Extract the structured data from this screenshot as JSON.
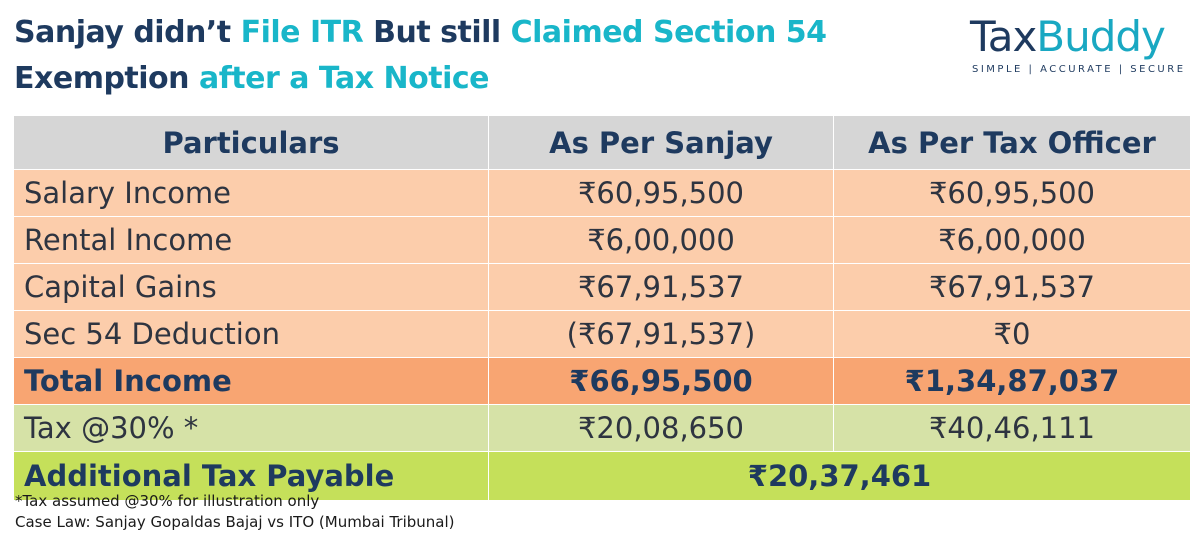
{
  "title": {
    "l1_a": "Sanjay didn’t ",
    "l1_b": "File ITR",
    "l1_c": " But still ",
    "l1_d": "Claimed Section 54",
    "l2_a": "Exemption ",
    "l2_b": "after a ",
    "l2_c": "Tax Notice",
    "accent_color": "#19b6c9",
    "dark_color": "#1e3a5f"
  },
  "logo": {
    "part1": "Tax",
    "part2": "Buddy",
    "tagline": "SIMPLE | ACCURATE | SECURE"
  },
  "table": {
    "headers": [
      "Particulars",
      "As Per Sanjay",
      "As Per Tax Officer"
    ],
    "rows": [
      {
        "label": "Salary Income",
        "sanjay": "₹60,95,500",
        "officer": "₹60,95,500"
      },
      {
        "label": "Rental Income",
        "sanjay": "₹6,00,000",
        "officer": "₹6,00,000"
      },
      {
        "label": "Capital Gains",
        "sanjay": "₹67,91,537",
        "officer": "₹67,91,537"
      },
      {
        "label": "Sec 54 Deduction",
        "sanjay": "(₹67,91,537)",
        "officer": "₹0"
      }
    ],
    "total": {
      "label": "Total Income",
      "sanjay": "₹66,95,500",
      "officer": "₹1,34,87,037"
    },
    "tax": {
      "label": "Tax @30% *",
      "sanjay": "₹20,08,650",
      "officer": "₹40,46,111"
    },
    "additional": {
      "label": "Additional Tax Payable",
      "value": "₹20,37,461"
    }
  },
  "footnotes": {
    "line1": "*Tax assumed @30% for illustration only",
    "line2": "Case Law: Sanjay Gopaldas Bajaj vs ITO (Mumbai Tribunal)"
  }
}
